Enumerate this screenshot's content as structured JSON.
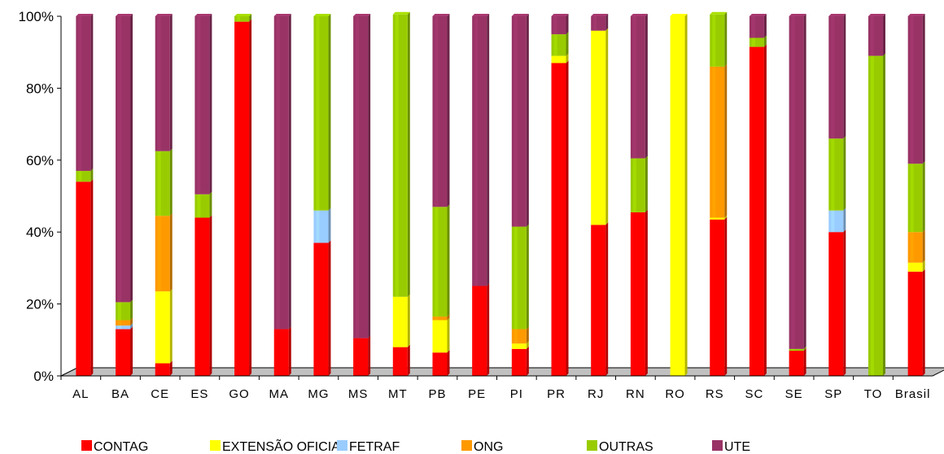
{
  "chart_data": {
    "type": "bar",
    "stacked": "100%",
    "categories": [
      "AL",
      "BA",
      "CE",
      "ES",
      "GO",
      "MA",
      "MG",
      "MS",
      "MT",
      "PB",
      "PE",
      "PI",
      "PR",
      "RJ",
      "RN",
      "RO",
      "RS",
      "SC",
      "SE",
      "SP",
      "TO",
      "Brasil"
    ],
    "yticks": [
      "0%",
      "20%",
      "40%",
      "60%",
      "80%",
      "100%"
    ],
    "ylim": [
      0,
      100
    ],
    "legend_position": "bottom",
    "series": [
      {
        "name": "CONTAG",
        "color": "#ff0000",
        "values": [
          54,
          13,
          3.5,
          44,
          98.5,
          13,
          37,
          10.5,
          8,
          6.5,
          25,
          7.5,
          87,
          42,
          45.5,
          0,
          43.5,
          91.5,
          7,
          40,
          0,
          29
        ]
      },
      {
        "name": "EXTENSÃO OFICIAL",
        "color": "#ffff00",
        "values": [
          0,
          0,
          20,
          0,
          0,
          0,
          0,
          0,
          14,
          9,
          0,
          1.5,
          2,
          54,
          0,
          100,
          0.5,
          0,
          0,
          0,
          0,
          2.5
        ]
      },
      {
        "name": "FETRAF",
        "color": "#99ccff",
        "values": [
          0,
          1,
          0,
          0,
          0,
          0,
          9,
          0,
          0,
          0,
          0,
          0,
          0,
          0,
          0,
          0,
          0,
          0,
          0,
          6,
          0,
          0
        ]
      },
      {
        "name": "ONG",
        "color": "#ff9900",
        "values": [
          0,
          1.5,
          21,
          0,
          0,
          0,
          0,
          0,
          0,
          1,
          0,
          4,
          0,
          0,
          0,
          0,
          42,
          0,
          0,
          0,
          0,
          8.5
        ]
      },
      {
        "name": "OUTRAS",
        "color": "#99cc00",
        "values": [
          3,
          5,
          18,
          6.5,
          1.5,
          0,
          54,
          0,
          78.5,
          30.5,
          0,
          28.5,
          6,
          0,
          15,
          0,
          14.5,
          2.5,
          0.5,
          20,
          89,
          19
        ]
      },
      {
        "name": "UTE",
        "color": "#993366",
        "values": [
          43,
          79.5,
          37.5,
          49.5,
          0,
          87,
          0,
          89.5,
          0,
          53,
          75,
          58.5,
          5,
          4,
          39.5,
          0,
          0,
          6,
          92.5,
          34,
          11,
          41
        ]
      }
    ]
  }
}
